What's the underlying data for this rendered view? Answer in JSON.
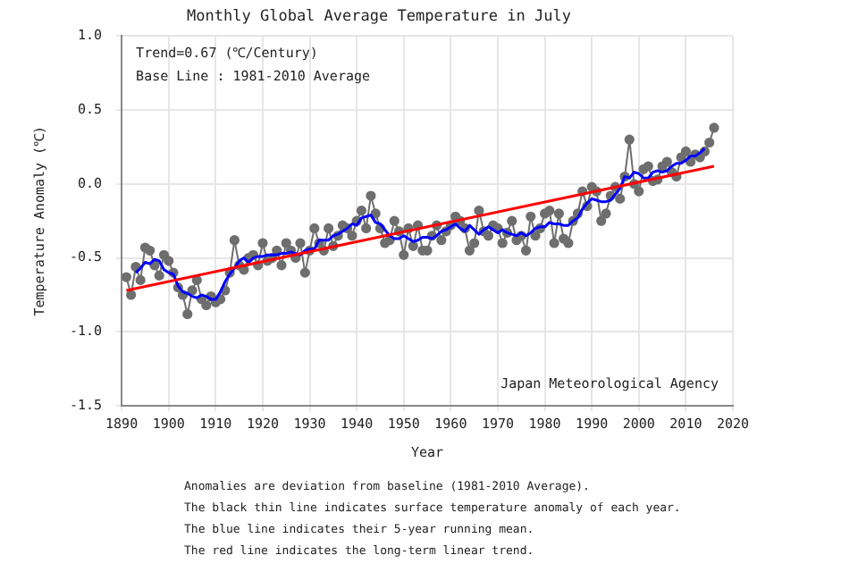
{
  "chart_data": {
    "type": "line",
    "title": "Monthly Global Average Temperature in July",
    "xlabel": "Year",
    "ylabel": "Temperature Anomaly (℃)",
    "xlim": [
      1890,
      2020
    ],
    "xticks": [
      1890,
      1900,
      1910,
      1920,
      1930,
      1940,
      1950,
      1960,
      1970,
      1980,
      1990,
      2000,
      2010,
      2020
    ],
    "ylim": [
      -1.5,
      1.0
    ],
    "yticks": [
      {
        "value": -1.5,
        "label": "-1.5"
      },
      {
        "value": -1.0,
        "label": "-1.0"
      },
      {
        "value": -0.5,
        "label": "-0.5"
      },
      {
        "value": 0,
        "label": "0.0"
      },
      {
        "value": 0.5,
        "label": "0.5"
      },
      {
        "value": 1.0,
        "label": "1.0"
      }
    ],
    "grid": true,
    "legend": false,
    "annotations": [
      "Trend=0.67 (℃/Century)",
      "Base Line : 1981-2010 Average",
      "Japan Meteorological Agency",
      "Anomalies are deviation from baseline (1981-2010 Average).",
      "The black thin line indicates surface temperature anomaly of each year.",
      "The blue line indicates their 5-year running mean.",
      "The red line indicates the long-term linear trend."
    ],
    "series": [
      {
        "color": "#6e6e6e",
        "marker": "circle",
        "x": [
          1891,
          1892,
          1893,
          1894,
          1895,
          1896,
          1897,
          1898,
          1899,
          1900,
          1901,
          1902,
          1903,
          1904,
          1905,
          1906,
          1907,
          1908,
          1909,
          1910,
          1911,
          1912,
          1913,
          1914,
          1915,
          1916,
          1917,
          1918,
          1919,
          1920,
          1921,
          1922,
          1923,
          1924,
          1925,
          1926,
          1927,
          1928,
          1929,
          1930,
          1931,
          1932,
          1933,
          1934,
          1935,
          1936,
          1937,
          1938,
          1939,
          1940,
          1941,
          1942,
          1943,
          1944,
          1945,
          1946,
          1947,
          1948,
          1949,
          1950,
          1951,
          1952,
          1953,
          1954,
          1955,
          1956,
          1957,
          1958,
          1959,
          1960,
          1961,
          1962,
          1963,
          1964,
          1965,
          1966,
          1967,
          1968,
          1969,
          1970,
          1971,
          1972,
          1973,
          1974,
          1975,
          1976,
          1977,
          1978,
          1979,
          1980,
          1981,
          1982,
          1983,
          1984,
          1985,
          1986,
          1987,
          1988,
          1989,
          1990,
          1991,
          1992,
          1993,
          1994,
          1995,
          1996,
          1997,
          1998,
          1999,
          2000,
          2001,
          2002,
          2003,
          2004,
          2005,
          2006,
          2007,
          2008,
          2009,
          2010,
          2011,
          2012,
          2013,
          2014,
          2015,
          2016
        ],
        "values": [
          -0.63,
          -0.75,
          -0.56,
          -0.65,
          -0.43,
          -0.45,
          -0.55,
          -0.62,
          -0.48,
          -0.52,
          -0.6,
          -0.7,
          -0.75,
          -0.88,
          -0.72,
          -0.65,
          -0.78,
          -0.82,
          -0.76,
          -0.8,
          -0.78,
          -0.72,
          -0.6,
          -0.38,
          -0.55,
          -0.58,
          -0.5,
          -0.48,
          -0.55,
          -0.4,
          -0.52,
          -0.5,
          -0.45,
          -0.55,
          -0.4,
          -0.45,
          -0.5,
          -0.4,
          -0.6,
          -0.45,
          -0.3,
          -0.4,
          -0.45,
          -0.3,
          -0.42,
          -0.35,
          -0.28,
          -0.3,
          -0.35,
          -0.25,
          -0.18,
          -0.3,
          -0.08,
          -0.2,
          -0.3,
          -0.4,
          -0.38,
          -0.25,
          -0.32,
          -0.48,
          -0.3,
          -0.42,
          -0.28,
          -0.45,
          -0.45,
          -0.35,
          -0.28,
          -0.38,
          -0.32,
          -0.28,
          -0.22,
          -0.25,
          -0.3,
          -0.45,
          -0.4,
          -0.18,
          -0.32,
          -0.35,
          -0.28,
          -0.3,
          -0.4,
          -0.33,
          -0.25,
          -0.38,
          -0.35,
          -0.45,
          -0.22,
          -0.35,
          -0.3,
          -0.2,
          -0.18,
          -0.4,
          -0.2,
          -0.37,
          -0.4,
          -0.25,
          -0.2,
          -0.05,
          -0.15,
          -0.02,
          -0.05,
          -0.25,
          -0.2,
          -0.08,
          -0.02,
          -0.1,
          0.05,
          0.3,
          0.0,
          -0.05,
          0.1,
          0.12,
          0.02,
          0.03,
          0.12,
          0.15,
          0.08,
          0.05,
          0.18,
          0.22,
          0.15,
          0.2,
          0.18,
          0.22,
          0.28,
          0.38
        ]
      },
      {
        "color": "#0000ff",
        "marker": "none",
        "x": [
          1893,
          1894,
          1895,
          1896,
          1897,
          1898,
          1899,
          1900,
          1901,
          1902,
          1903,
          1904,
          1905,
          1906,
          1907,
          1908,
          1909,
          1910,
          1911,
          1912,
          1913,
          1914,
          1915,
          1916,
          1917,
          1918,
          1919,
          1920,
          1921,
          1922,
          1923,
          1924,
          1925,
          1926,
          1927,
          1928,
          1929,
          1930,
          1931,
          1932,
          1933,
          1934,
          1935,
          1936,
          1937,
          1938,
          1939,
          1940,
          1941,
          1942,
          1943,
          1944,
          1945,
          1946,
          1947,
          1948,
          1949,
          1950,
          1951,
          1952,
          1953,
          1954,
          1955,
          1956,
          1957,
          1958,
          1959,
          1960,
          1961,
          1962,
          1963,
          1964,
          1965,
          1966,
          1967,
          1968,
          1969,
          1970,
          1971,
          1972,
          1973,
          1974,
          1975,
          1976,
          1977,
          1978,
          1979,
          1980,
          1981,
          1982,
          1983,
          1984,
          1985,
          1986,
          1987,
          1988,
          1989,
          1990,
          1991,
          1992,
          1993,
          1994,
          1995,
          1996,
          1997,
          1998,
          1999,
          2000,
          2001,
          2002,
          2003,
          2004,
          2005,
          2006,
          2007,
          2008,
          2009,
          2010,
          2011,
          2012,
          2013,
          2014
        ],
        "values": [
          -0.6,
          -0.57,
          -0.53,
          -0.54,
          -0.51,
          -0.52,
          -0.58,
          -0.6,
          -0.61,
          -0.69,
          -0.73,
          -0.74,
          -0.76,
          -0.77,
          -0.75,
          -0.76,
          -0.78,
          -0.78,
          -0.73,
          -0.66,
          -0.61,
          -0.57,
          -0.52,
          -0.5,
          -0.53,
          -0.5,
          -0.49,
          -0.49,
          -0.48,
          -0.48,
          -0.48,
          -0.47,
          -0.47,
          -0.46,
          -0.47,
          -0.48,
          -0.45,
          -0.44,
          -0.44,
          -0.38,
          -0.38,
          -0.38,
          -0.35,
          -0.34,
          -0.32,
          -0.3,
          -0.27,
          -0.28,
          -0.23,
          -0.22,
          -0.21,
          -0.26,
          -0.27,
          -0.31,
          -0.35,
          -0.37,
          -0.37,
          -0.35,
          -0.37,
          -0.39,
          -0.38,
          -0.36,
          -0.36,
          -0.37,
          -0.35,
          -0.32,
          -0.31,
          -0.29,
          -0.27,
          -0.3,
          -0.32,
          -0.28,
          -0.31,
          -0.34,
          -0.31,
          -0.29,
          -0.31,
          -0.33,
          -0.31,
          -0.33,
          -0.34,
          -0.35,
          -0.33,
          -0.35,
          -0.33,
          -0.3,
          -0.29,
          -0.29,
          -0.26,
          -0.27,
          -0.27,
          -0.28,
          -0.28,
          -0.25,
          -0.23,
          -0.17,
          -0.13,
          -0.1,
          -0.11,
          -0.12,
          -0.12,
          -0.11,
          -0.07,
          -0.03,
          0.05,
          0.04,
          0.08,
          0.07,
          0.04,
          0.04,
          0.08,
          0.09,
          0.08,
          0.09,
          0.12,
          0.14,
          0.14,
          0.16,
          0.19,
          0.19,
          0.21,
          0.24
        ]
      },
      {
        "color": "#ff0000",
        "marker": "none",
        "x": [
          1891,
          2016
        ],
        "values": [
          -0.72,
          0.12
        ]
      }
    ]
  }
}
